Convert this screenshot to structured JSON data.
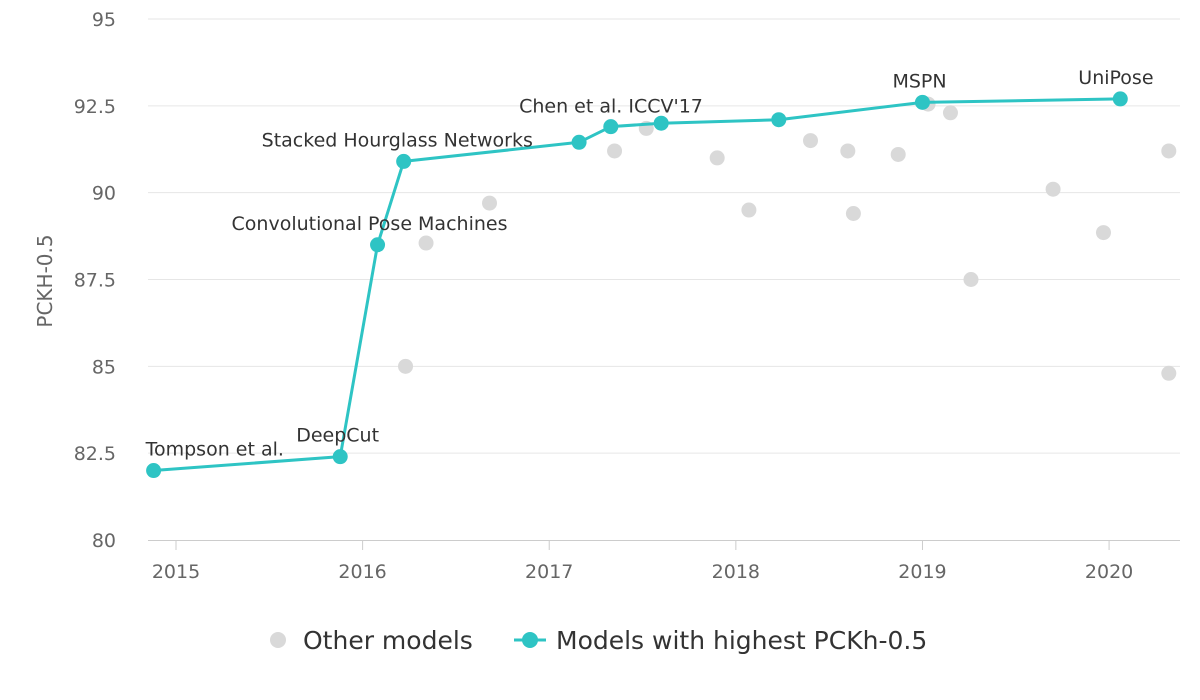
{
  "chart_data": {
    "type": "scatter",
    "title": "",
    "xlabel": "",
    "ylabel": "PCKH-0.5",
    "xlim": [
      2014.85,
      2020.38
    ],
    "ylim": [
      80,
      95
    ],
    "yticks": [
      80,
      82.5,
      85,
      87.5,
      90,
      92.5,
      95
    ],
    "ytick_labels": [
      "80",
      "82.5",
      "85",
      "87.5",
      "90",
      "92.5",
      "95"
    ],
    "xticks": [
      2015,
      2016,
      2017,
      2018,
      2019,
      2020
    ],
    "xtick_labels": [
      "2015",
      "2016",
      "2017",
      "2018",
      "2019",
      "2020"
    ],
    "grid": "horizontal",
    "legend_position": "bottom",
    "series": [
      {
        "name": "Other models",
        "kind": "scatter",
        "color": "#d9d9d9",
        "points": [
          [
            2016.23,
            85.0
          ],
          [
            2016.34,
            88.55
          ],
          [
            2016.68,
            89.7
          ],
          [
            2017.35,
            91.2
          ],
          [
            2017.52,
            91.85
          ],
          [
            2017.9,
            91.0
          ],
          [
            2018.07,
            89.5
          ],
          [
            2018.4,
            91.5
          ],
          [
            2018.6,
            91.2
          ],
          [
            2018.63,
            89.4
          ],
          [
            2018.87,
            91.1
          ],
          [
            2019.03,
            92.55
          ],
          [
            2019.15,
            92.3
          ],
          [
            2019.26,
            87.5
          ],
          [
            2019.7,
            90.1
          ],
          [
            2019.97,
            88.85
          ],
          [
            2020.32,
            91.2
          ],
          [
            2020.32,
            84.8
          ]
        ]
      },
      {
        "name": "Models with highest PCKh-0.5",
        "kind": "line",
        "color": "#2ec4c4",
        "points": [
          [
            2014.88,
            82.0
          ],
          [
            2015.88,
            82.4
          ],
          [
            2016.08,
            88.5
          ],
          [
            2016.22,
            90.9
          ],
          [
            2017.16,
            91.45
          ],
          [
            2017.33,
            91.9
          ],
          [
            2017.6,
            92.0
          ],
          [
            2018.23,
            92.1
          ],
          [
            2019.0,
            92.6
          ],
          [
            2020.06,
            92.7
          ]
        ]
      }
    ],
    "annotations": [
      {
        "text": "Tompson et al.",
        "x": 2014.88,
        "y": 82.0
      },
      {
        "text": "DeepCut",
        "x": 2015.88,
        "y": 82.4
      },
      {
        "text": "Convolutional Pose Machines",
        "x": 2016.08,
        "y": 88.5
      },
      {
        "text": "Stacked Hourglass Networks",
        "x": 2016.22,
        "y": 90.9
      },
      {
        "text": "Chen et al. ICCV'17",
        "x": 2017.16,
        "y": 91.45
      },
      {
        "text": "MSPN",
        "x": 2019.0,
        "y": 92.6
      },
      {
        "text": "UniPose",
        "x": 2020.06,
        "y": 92.7
      }
    ],
    "legend": [
      {
        "label": "Other models",
        "marker": "circle",
        "color": "#d9d9d9"
      },
      {
        "label": "Models with highest PCKh-0.5",
        "marker": "line-circle",
        "color": "#2ec4c4"
      }
    ]
  }
}
